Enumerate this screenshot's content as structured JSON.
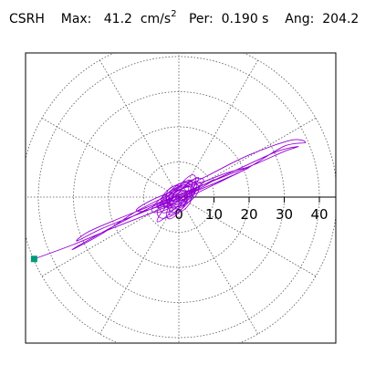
{
  "header": {
    "station": "CSRH",
    "max_label": "Max:",
    "max_value": "41.2",
    "max_unit": "cm/s",
    "max_unit_exp": "2",
    "per_label": "Per:",
    "per_value": "0.190 s",
    "ang_label": "Ang:",
    "ang_value": "204.2"
  },
  "colors": {
    "trace": "#9400d3",
    "marker": "#009a7a",
    "grid": "#555555",
    "frame": "#000000"
  },
  "chart_data": {
    "type": "polar",
    "radial_ticks": [
      0,
      10,
      20,
      30,
      40
    ],
    "radial_tick_labels": [
      "0",
      "10",
      "20",
      "30",
      "40"
    ],
    "r_max": 45,
    "angular_spokes_deg": [
      0,
      30,
      60,
      90,
      120,
      150,
      180,
      210,
      240,
      270,
      300,
      330
    ],
    "grid": true,
    "series": [
      {
        "points": [
          [
            -41.2,
            -17.6
          ],
          [
            -30,
            -13.5
          ],
          [
            -18,
            -8.5
          ],
          [
            -6,
            -3.8
          ],
          [
            2,
            -0.3
          ],
          [
            10,
            3.5
          ],
          [
            20,
            8.5
          ],
          [
            30,
            14.5
          ],
          [
            36,
            15.5
          ],
          [
            32,
            16.2
          ],
          [
            20,
            12
          ],
          [
            8,
            6
          ],
          [
            -2,
            1
          ],
          [
            -12,
            -4
          ],
          [
            -22,
            -10.5
          ],
          [
            -30,
            -14.8
          ],
          [
            -28,
            -13.5
          ],
          [
            -18,
            -8
          ],
          [
            -6,
            -2
          ],
          [
            6,
            3
          ],
          [
            18,
            8.5
          ],
          [
            28,
            13
          ],
          [
            34,
            14.4
          ],
          [
            30,
            13
          ],
          [
            22,
            9.5
          ],
          [
            12,
            5.5
          ],
          [
            2,
            1.5
          ],
          [
            -8,
            -2.5
          ],
          [
            -18,
            -6.5
          ],
          [
            -26,
            -10
          ],
          [
            -29,
            -12.5
          ],
          [
            -22,
            -9
          ],
          [
            -12,
            -5
          ],
          [
            -2,
            -1
          ],
          [
            8,
            3
          ],
          [
            16,
            6.5
          ],
          [
            20,
            8.5
          ],
          [
            14,
            7
          ],
          [
            6,
            4
          ],
          [
            -2,
            1.5
          ],
          [
            -8,
            -1
          ],
          [
            -12,
            -3.5
          ],
          [
            -10,
            -4
          ],
          [
            -4,
            -2
          ],
          [
            2,
            0.5
          ],
          [
            7,
            3
          ],
          [
            10,
            5
          ],
          [
            8,
            4
          ],
          [
            4,
            2
          ],
          [
            0,
            0.5
          ],
          [
            -4,
            -1.5
          ],
          [
            -6,
            -2.5
          ],
          [
            -3,
            -1.5
          ],
          [
            1,
            0
          ],
          [
            4,
            1.5
          ],
          [
            5,
            2.5
          ],
          [
            2,
            1.5
          ],
          [
            -1,
            0
          ],
          [
            -3,
            -1
          ],
          [
            -1,
            -0.8
          ],
          [
            2,
            0.5
          ],
          [
            3,
            1.2
          ],
          [
            1,
            0.5
          ],
          [
            -1,
            -0.3
          ]
        ]
      }
    ],
    "start_marker": [
      -41.2,
      -17.6
    ]
  }
}
